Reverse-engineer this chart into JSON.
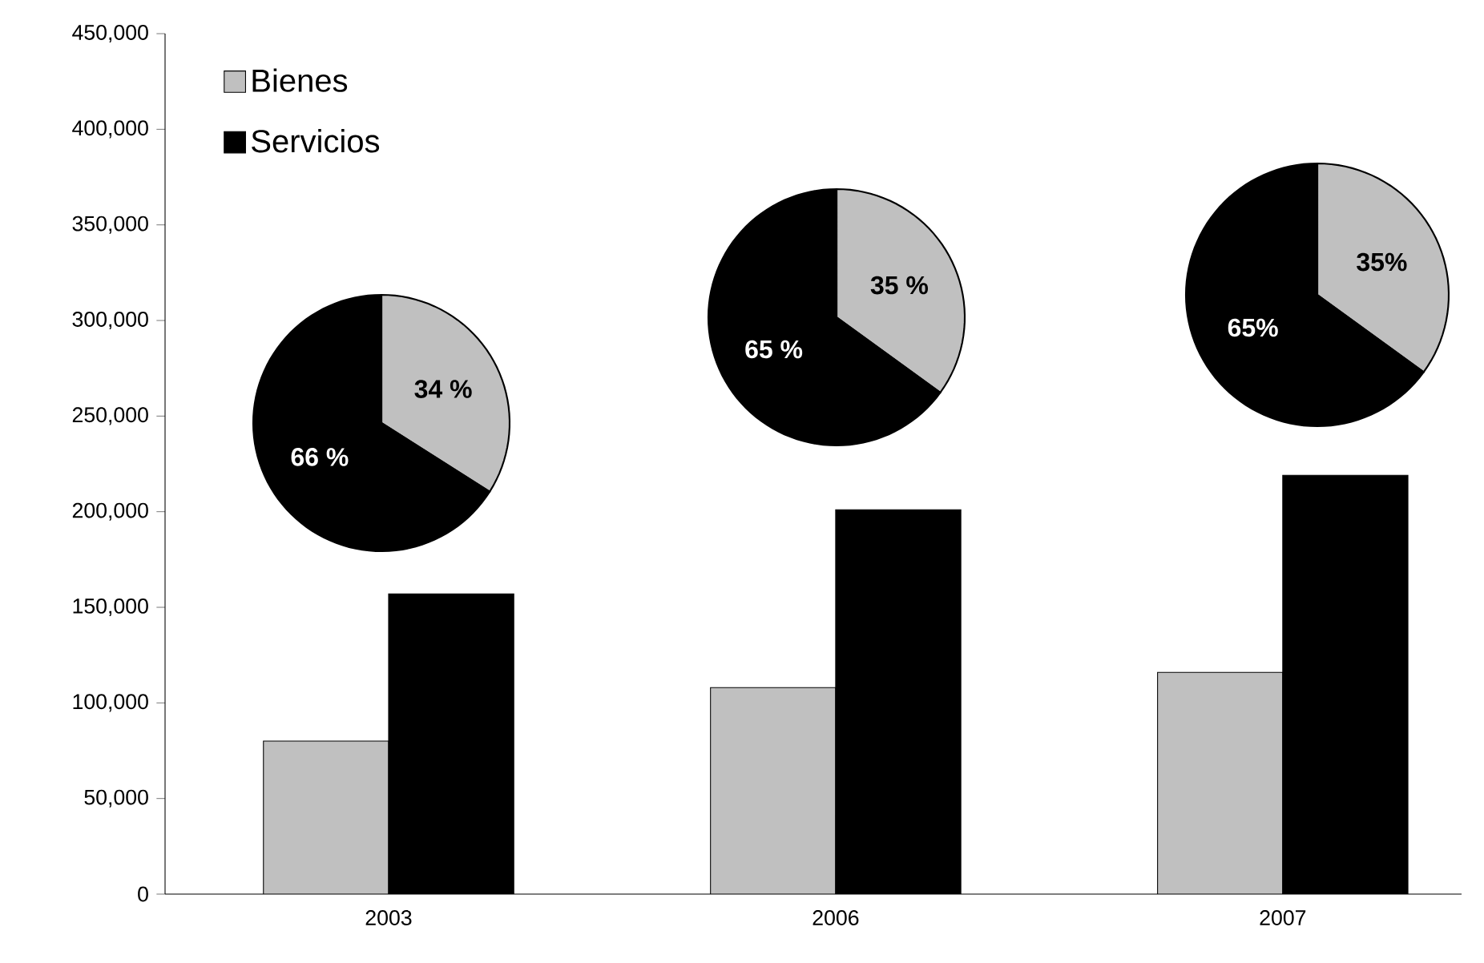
{
  "chart_data": [
    {
      "type": "bar",
      "categories": [
        "2003",
        "2006",
        "2007"
      ],
      "series": [
        {
          "name": "Bienes",
          "color": "#c0c0c0",
          "values": [
            80000,
            108000,
            116000
          ]
        },
        {
          "name": "Servicios",
          "color": "#000000",
          "values": [
            157000,
            201000,
            219000
          ]
        }
      ],
      "ylim": [
        0,
        450000
      ],
      "yticks": [
        {
          "value": 0,
          "label": "0"
        },
        {
          "value": 50000,
          "label": "50,000"
        },
        {
          "value": 100000,
          "label": "100,000"
        },
        {
          "value": 150000,
          "label": "150,000"
        },
        {
          "value": 200000,
          "label": "200,000"
        },
        {
          "value": 250000,
          "label": "250,000"
        },
        {
          "value": 300000,
          "label": "300,000"
        },
        {
          "value": 350000,
          "label": "350,000"
        },
        {
          "value": 400000,
          "label": "400,000"
        },
        {
          "value": 450000,
          "label": "450,000"
        }
      ],
      "legend": "top left"
    },
    {
      "type": "pie",
      "categories": [
        null,
        null
      ],
      "values": [
        34,
        66
      ],
      "colors": [
        "#c0c0c0",
        "#000000"
      ],
      "value_labels": [
        "34 %",
        "66 %"
      ]
    },
    {
      "type": "pie",
      "categories": [
        null,
        null
      ],
      "values": [
        35,
        65
      ],
      "colors": [
        "#c0c0c0",
        "#000000"
      ],
      "value_labels": [
        "35 %",
        "65 %"
      ]
    },
    {
      "type": "pie",
      "categories": [
        null,
        null
      ],
      "values": [
        35,
        65
      ],
      "colors": [
        "#c0c0c0",
        "#000000"
      ],
      "value_labels": [
        "35%",
        "65%"
      ]
    }
  ]
}
